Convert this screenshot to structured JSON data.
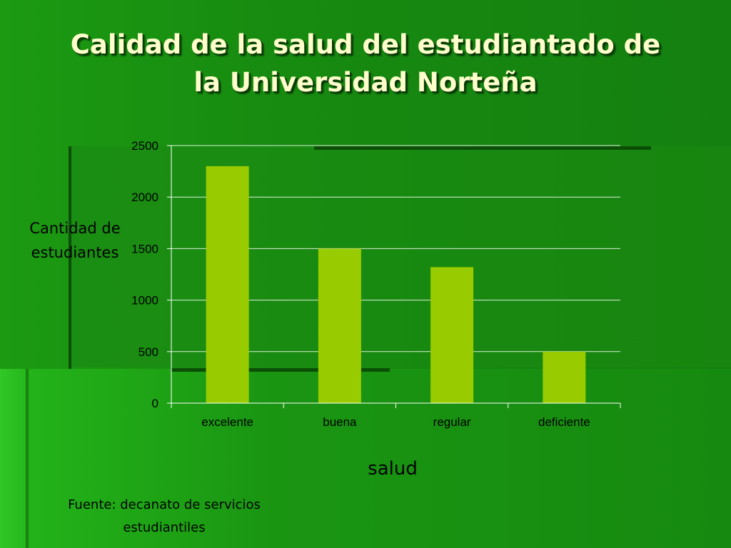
{
  "slide": {
    "title": "Calidad de la salud del estudiantado de la Universidad Norteña",
    "source_note": "Fuente: decanato de servicios estudiantiles"
  },
  "colors": {
    "bar": "#99cc00",
    "gridline": "#ffffff",
    "title_text": "#ffffcc"
  },
  "chart_data": {
    "type": "bar",
    "title": "",
    "xlabel": "salud",
    "ylabel": "Cantidad de estudiantes",
    "categories": [
      "excelente",
      "buena",
      "regular",
      "deficiente"
    ],
    "values": [
      2300,
      1500,
      1320,
      500
    ],
    "ylim": [
      0,
      2500
    ],
    "yticks": [
      0,
      500,
      1000,
      1500,
      2000,
      2500
    ],
    "grid": true,
    "legend": "none"
  }
}
